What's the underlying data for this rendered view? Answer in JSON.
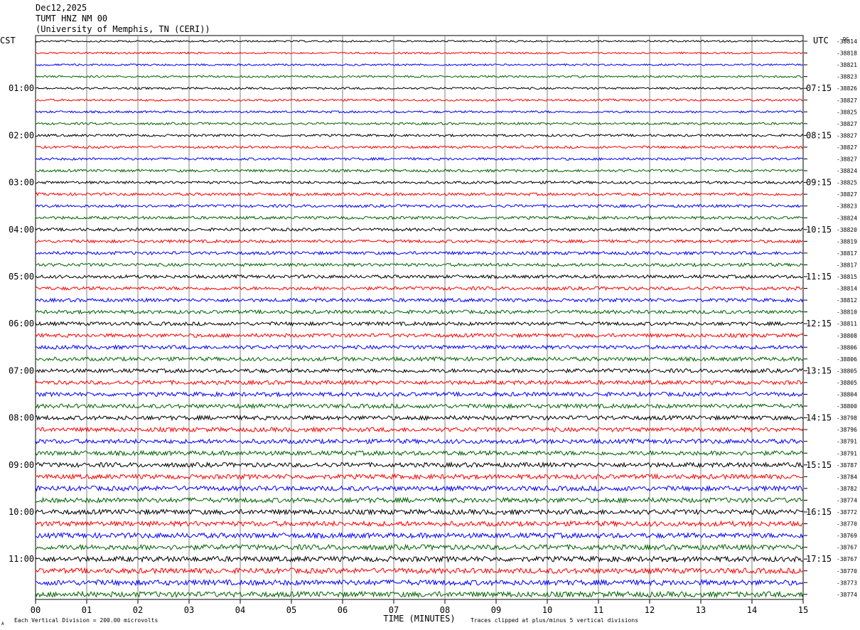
{
  "header": {
    "date": "Dec12,2025",
    "station": "TUMT HNZ NM 00",
    "institution": "(University of Memphis, TN (CERI))"
  },
  "left_axis_label": "CST",
  "right_axis_label": "UTC",
  "dc_label": "DC",
  "footer": {
    "scale_note": "Each Vertical Division =  200.00 microvolts",
    "clip_note": "Traces clipped at plus/minus 5 vertical divisions",
    "corner_mark": "A"
  },
  "colors": {
    "cycle": [
      "#000000",
      "#ff0000",
      "#0000ff",
      "#006400"
    ],
    "grid": "#808080"
  },
  "chart_data": {
    "type": "line",
    "xlabel": "TIME (MINUTES)",
    "xlim": [
      0,
      15
    ],
    "x_ticks": [
      "00",
      "01",
      "02",
      "03",
      "04",
      "05",
      "06",
      "07",
      "08",
      "09",
      "10",
      "11",
      "12",
      "13",
      "14",
      "15"
    ],
    "left_hour_labels": [
      "01:00",
      "02:00",
      "03:00",
      "04:00",
      "05:00",
      "06:00",
      "07:00",
      "08:00",
      "09:00",
      "10:00",
      "11:00"
    ],
    "right_hour_labels": [
      "07:15",
      "08:15",
      "09:15",
      "10:15",
      "11:15",
      "12:15",
      "13:15",
      "14:15",
      "15:15",
      "16:15",
      "17:15"
    ],
    "trace_count": 48,
    "dc_offsets": [
      "-38814",
      "-38818",
      "-38821",
      "-38823",
      "-38826",
      "-38827",
      "-38825",
      "-38827",
      "-38827",
      "-38827",
      "-38827",
      "-38824",
      "-38825",
      "-38827",
      "-38823",
      "-38824",
      "-38820",
      "-38819",
      "-38817",
      "-38817",
      "-38815",
      "-38814",
      "-38812",
      "-38810",
      "-38811",
      "-38808",
      "-38806",
      "-38806",
      "-38805",
      "-38805",
      "-38804",
      "-38800",
      "-38798",
      "-38796",
      "-38791",
      "-38791",
      "-38787",
      "-38784",
      "-38782",
      "-38774",
      "-38772",
      "-38770",
      "-38769",
      "-38767",
      "-38767",
      "-38770",
      "-38773",
      "-38774"
    ]
  }
}
